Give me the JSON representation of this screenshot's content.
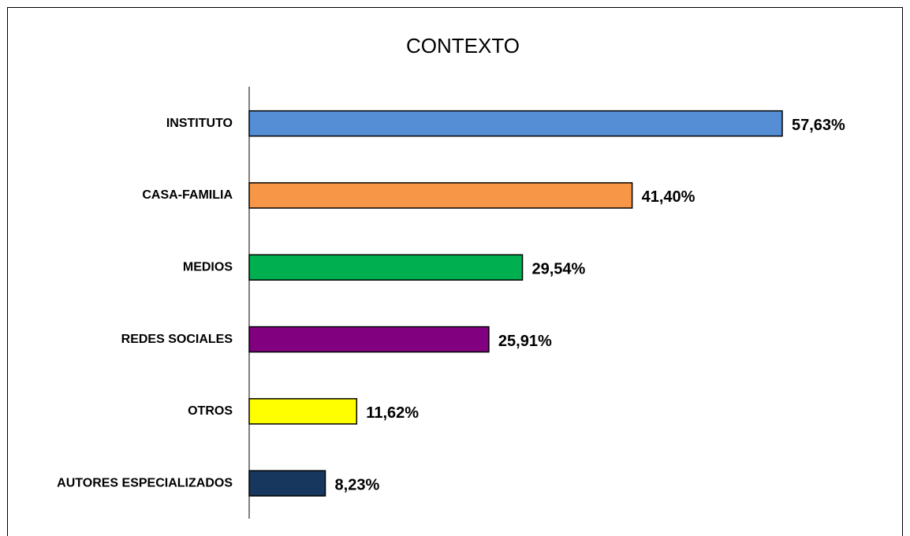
{
  "chart_data": {
    "type": "bar",
    "orientation": "horizontal",
    "title": "CONTEXTO",
    "categories": [
      "INSTITUTO",
      "CASA-FAMILIA",
      "MEDIOS",
      "REDES SOCIALES",
      "OTROS",
      "AUTORES ESPECIALIZADOS"
    ],
    "values": [
      57.63,
      41.4,
      29.54,
      25.91,
      11.62,
      8.23
    ],
    "value_labels": [
      "57,63%",
      "41,40%",
      "29,54%",
      "25,91%",
      "11,62%",
      "8,23%"
    ],
    "colors": [
      "#558ed5",
      "#f79646",
      "#00b050",
      "#800080",
      "#ffff00",
      "#17375e"
    ]
  }
}
